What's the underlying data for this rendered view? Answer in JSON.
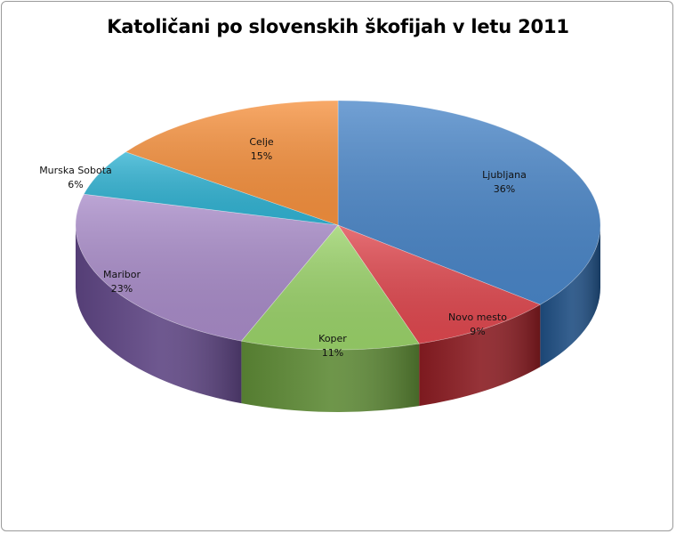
{
  "chart_data": {
    "type": "pie",
    "title": "Katoličani po slovenskih škofijah v letu 2011",
    "legend": "none",
    "slices": [
      {
        "label": "Ljubljana",
        "value": 36,
        "value_label": "36%",
        "color": "#4a86c8",
        "side_color": "#1f4e82"
      },
      {
        "label": "Novo mesto",
        "value": 9,
        "value_label": "9%",
        "color": "#e0484f",
        "side_color": "#8a1c22"
      },
      {
        "label": "Koper",
        "value": 11,
        "value_label": "11%",
        "color": "#9bd36a",
        "side_color": "#5e8a36"
      },
      {
        "label": "Maribor",
        "value": 23,
        "value_label": "23%",
        "color": "#a98cc9",
        "side_color": "#5e4583"
      },
      {
        "label": "Murska Sobota",
        "value": 6,
        "value_label": "6%",
        "color": "#31b3d3",
        "side_color": "#1a6f86"
      },
      {
        "label": "Celje",
        "value": 15,
        "value_label": "15%",
        "color": "#f6913e",
        "side_color": "#a3581c"
      }
    ]
  }
}
